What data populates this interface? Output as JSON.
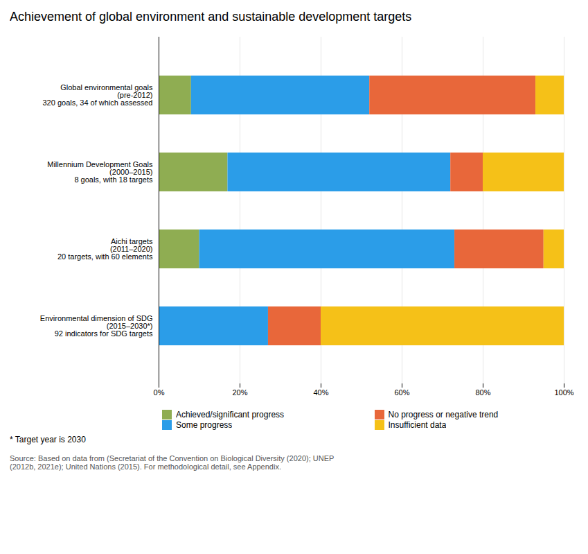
{
  "chart_data": {
    "type": "bar",
    "orientation": "horizontal",
    "stacked": true,
    "title": "Achievement of global environment and sustainable development targets",
    "categories": [
      "Global environmental goals\n(pre-2012)\n320 goals, 34 of which assessed",
      "Millennium Development Goals\n(2000–2015)\n8 goals, with 18 targets",
      "Aichi targets\n(2011–2020)\n20 targets, with 60 elements",
      "Environmental dimension of SDG\n(2015–2030*)\n92 indicators for SDG targets"
    ],
    "series": [
      {
        "name": "Achieved/significant progress",
        "color": "#8fad52",
        "values": [
          8,
          17,
          10,
          0
        ]
      },
      {
        "name": "Some progress",
        "color": "#2b9de8",
        "values": [
          44,
          55,
          63,
          27
        ]
      },
      {
        "name": "No progress or negative trend",
        "color": "#e8673a",
        "values": [
          41,
          8,
          22,
          13
        ]
      },
      {
        "name": "Insufficient data",
        "color": "#f5c118",
        "values": [
          7,
          20,
          5,
          60
        ]
      }
    ],
    "xlim": [
      0,
      100
    ],
    "xticks": [
      {
        "value": 0,
        "label": "0%"
      },
      {
        "value": 20,
        "label": "20%"
      },
      {
        "value": 40,
        "label": "40%"
      },
      {
        "value": 60,
        "label": "60%"
      },
      {
        "value": 80,
        "label": "80%"
      },
      {
        "value": 100,
        "label": "100%"
      }
    ],
    "grid": true,
    "legend": "bottom",
    "annotations": [
      "* Target year is 2030",
      "Source: Based on data from (Secretariat of the Convention on Biological Diversity (2020); UNEP\n(2012b, 2021e); United Nations (2015). For methodological detail, see Appendix."
    ]
  }
}
